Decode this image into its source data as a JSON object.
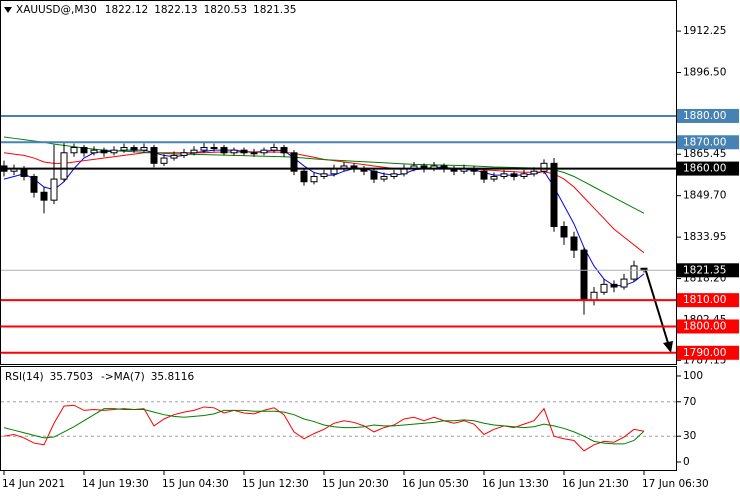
{
  "chart_data": [
    {
      "type": "candlestick",
      "title": "XAUUSD@,M30",
      "x": [
        "14 Jun 2021",
        null,
        null,
        null,
        null,
        null,
        null,
        null,
        "14 Jun 19:30",
        null,
        null,
        null,
        null,
        null,
        null,
        null,
        "15 Jun 04:30",
        null,
        null,
        null,
        null,
        null,
        null,
        null,
        "15 Jun 12:30",
        null,
        null,
        null,
        null,
        null,
        null,
        null,
        "15 Jun 20:30",
        null,
        null,
        null,
        null,
        null,
        null,
        null,
        "16 Jun 05:30",
        null,
        null,
        null,
        null,
        null,
        null,
        null,
        "16 Jun 13:30",
        null,
        null,
        null,
        null,
        null,
        null,
        null,
        "16 Jun 21:30",
        null,
        null,
        null,
        null,
        null,
        null,
        null,
        "17 Jun 06:30"
      ],
      "open": [
        1861,
        1859,
        1860,
        1857,
        1851,
        1848,
        1856,
        1866,
        1868,
        1866,
        1867,
        1866,
        1867,
        1868,
        1867,
        1868,
        1862,
        1864,
        1865,
        1866,
        1867,
        1868,
        1868,
        1866,
        1867,
        1866,
        1866,
        1867,
        1868,
        1866,
        1859,
        1855,
        1857,
        1858,
        1860,
        1861,
        1860,
        1859,
        1856,
        1857,
        1858,
        1860,
        1861,
        1860,
        1861,
        1860,
        1859,
        1860,
        1859,
        1856,
        1857,
        1858,
        1857,
        1858,
        1859,
        1862,
        1838,
        1834,
        1829,
        1810,
        1813,
        1816,
        1815,
        1818,
        1822.12
      ],
      "high": [
        1863,
        1861.5,
        1861,
        1858,
        1853,
        1869,
        1870,
        1869.5,
        1869,
        1868.5,
        1868,
        1868.5,
        1869.5,
        1869,
        1869.5,
        1869,
        1865.5,
        1866.5,
        1867.5,
        1868.5,
        1870,
        1869.5,
        1869,
        1868,
        1868,
        1867.5,
        1868,
        1869.5,
        1869,
        1867,
        1860,
        1858.5,
        1859.5,
        1861.5,
        1862.5,
        1862,
        1861,
        1860,
        1858.5,
        1859.5,
        1861.5,
        1862.5,
        1862,
        1862.5,
        1862,
        1861,
        1861.5,
        1861,
        1860,
        1858.5,
        1859.5,
        1859,
        1859.5,
        1860.5,
        1863.5,
        1864,
        1840,
        1836,
        1830,
        1815,
        1818,
        1817.5,
        1820,
        1825,
        1822.13
      ],
      "low": [
        1857,
        1857.5,
        1855.5,
        1849,
        1843,
        1846.5,
        1855,
        1864.5,
        1864.5,
        1865,
        1864.5,
        1865,
        1866,
        1866,
        1866,
        1860.5,
        1861,
        1863,
        1864,
        1865,
        1866,
        1866.5,
        1865,
        1865,
        1865,
        1864.5,
        1865,
        1866,
        1864.5,
        1857.5,
        1853.5,
        1854,
        1856,
        1857,
        1859,
        1858.5,
        1857.5,
        1854.5,
        1855,
        1856,
        1857,
        1859,
        1858.5,
        1859,
        1858.5,
        1857.5,
        1858,
        1857.5,
        1854.5,
        1855,
        1856,
        1855.5,
        1856,
        1857,
        1858,
        1836,
        1831,
        1826,
        1804.5,
        1808,
        1812,
        1813,
        1814,
        1817,
        1820.53
      ],
      "close": [
        1859,
        1860,
        1857,
        1851,
        1848,
        1856,
        1866,
        1868,
        1866,
        1867,
        1866,
        1867,
        1868,
        1867,
        1868,
        1862,
        1864,
        1865,
        1866,
        1867,
        1868,
        1868,
        1866,
        1867,
        1866,
        1866,
        1867,
        1868,
        1866,
        1859,
        1855,
        1857,
        1858,
        1860,
        1861,
        1860,
        1859,
        1856,
        1857,
        1858,
        1860,
        1861,
        1860,
        1861,
        1860,
        1859,
        1860,
        1859,
        1856,
        1857,
        1858,
        1857,
        1858,
        1859,
        1862,
        1838,
        1834,
        1829,
        1810,
        1813,
        1816,
        1815,
        1818,
        1823,
        1821.35
      ],
      "lines": [
        {
          "color": "#0000ff",
          "values": [
            1856,
            1857,
            1858,
            1856,
            1853,
            1852,
            1855,
            1860,
            1864,
            1866,
            1866.5,
            1866.5,
            1867,
            1867,
            1867,
            1866,
            1865,
            1864.5,
            1865,
            1866,
            1866.5,
            1867,
            1867,
            1867,
            1866.5,
            1866.3,
            1866.5,
            1867,
            1866.8,
            1864,
            1861,
            1858.5,
            1857.5,
            1857.5,
            1859,
            1860,
            1860,
            1859,
            1858,
            1857.5,
            1858,
            1859.5,
            1860,
            1860.5,
            1860.5,
            1860,
            1859.5,
            1859.5,
            1858.5,
            1857.5,
            1857.5,
            1857.5,
            1857.5,
            1858,
            1859,
            1853,
            1846,
            1839,
            1830,
            1823,
            1818,
            1815.5,
            1815.5,
            1817,
            1820
          ]
        },
        {
          "color": "#ff0000",
          "values": [
            1866,
            1865.5,
            1865,
            1864,
            1862.5,
            1862,
            1862,
            1862.5,
            1863,
            1863.5,
            1864,
            1864.5,
            1865,
            1865.5,
            1866,
            1866,
            1866,
            1866,
            1866,
            1866,
            1866,
            1866.2,
            1866.3,
            1866.3,
            1866.3,
            1866.2,
            1866.2,
            1866.3,
            1866.2,
            1865.8,
            1865,
            1864.3,
            1863.5,
            1863,
            1862.5,
            1862,
            1861.5,
            1861,
            1860.5,
            1860,
            1860,
            1860,
            1860,
            1860,
            1860,
            1860,
            1860,
            1859.8,
            1859.5,
            1859.3,
            1859,
            1858.8,
            1858.6,
            1858.6,
            1858.8,
            1858,
            1856,
            1853,
            1849,
            1845,
            1841,
            1837,
            1834,
            1831,
            1828
          ]
        },
        {
          "color": "#008000",
          "values": [
            1872,
            1871.5,
            1871,
            1870.5,
            1870,
            1869.3,
            1868.8,
            1868.3,
            1867.8,
            1867.4,
            1867,
            1866.8,
            1866.6,
            1866.4,
            1866.2,
            1866,
            1865.8,
            1865.6,
            1865.5,
            1865.4,
            1865.3,
            1865.2,
            1865.1,
            1865,
            1864.9,
            1864.8,
            1864.7,
            1864.6,
            1864.5,
            1864.3,
            1864,
            1863.7,
            1863.4,
            1863.2,
            1863,
            1862.8,
            1862.6,
            1862.4,
            1862.2,
            1862,
            1861.8,
            1861.6,
            1861.5,
            1861.4,
            1861.3,
            1861.2,
            1861.1,
            1861,
            1860.8,
            1860.6,
            1860.5,
            1860.4,
            1860.3,
            1860.2,
            1860.2,
            1859.5,
            1858.5,
            1857,
            1855,
            1853,
            1851,
            1849,
            1847,
            1845,
            1843
          ]
        }
      ],
      "levels": [
        {
          "value": 1880,
          "label": "1880.00",
          "color": "#4682b4"
        },
        {
          "value": 1870,
          "label": "1870.00",
          "color": "#4682b4"
        },
        {
          "value": 1860,
          "label": "1860.00",
          "color": "#000000"
        },
        {
          "value": 1810,
          "label": "1810.00",
          "color": "#ff0000"
        },
        {
          "value": 1800,
          "label": "1800.00",
          "color": "#ff0000"
        },
        {
          "value": 1790,
          "label": "1790.00",
          "color": "#ff0000"
        }
      ],
      "ylim": [
        1786.5,
        1923.3
      ],
      "yticks": [
        1912.25,
        {
          "value": 1896.5,
          "label": "1896.50"
        },
        1865.45,
        {
          "value": 1849.7,
          "label": "1849.70"
        },
        1833.95,
        {
          "value": 1818.2,
          "label": "1818.20"
        },
        1802.45,
        1787.15
      ]
    },
    {
      "type": "line",
      "title": "RSI(14)",
      "rsi_value": 35.7503,
      "ma_title": "->MA(7)",
      "ma_value": 35.8116,
      "series": [
        {
          "color": "#ff0000",
          "values": [
            30,
            32,
            28,
            22,
            20,
            45,
            65,
            66,
            60,
            61,
            60,
            61,
            62,
            61,
            62,
            42,
            50,
            55,
            58,
            60,
            64,
            63,
            57,
            60,
            57,
            56,
            60,
            63,
            55,
            35,
            27,
            33,
            38,
            45,
            48,
            46,
            42,
            35,
            40,
            43,
            50,
            52,
            48,
            52,
            48,
            45,
            48,
            44,
            32,
            38,
            42,
            40,
            44,
            48,
            62,
            30,
            27,
            25,
            13,
            20,
            24,
            23,
            29,
            38,
            35.75
          ]
        },
        {
          "color": "#008000",
          "values": [
            40,
            37,
            34,
            31,
            28,
            29,
            35,
            41,
            48,
            55,
            62,
            62,
            61,
            61,
            61,
            58,
            55,
            53,
            52,
            53,
            54,
            56,
            60,
            60,
            60,
            59,
            59,
            59,
            58,
            55,
            50,
            47,
            43,
            41,
            40,
            40,
            41,
            43,
            42,
            42,
            43,
            44,
            45,
            46,
            48,
            48,
            49,
            48,
            45,
            43,
            42,
            41,
            40,
            41,
            44,
            42,
            39,
            35,
            30,
            24,
            22,
            21,
            21,
            25,
            35.81
          ]
        }
      ],
      "levels": [
        70,
        30
      ],
      "ylim": [
        -9.3,
        111.6
      ],
      "yticks": [
        0,
        30,
        70,
        100
      ]
    }
  ]
}
